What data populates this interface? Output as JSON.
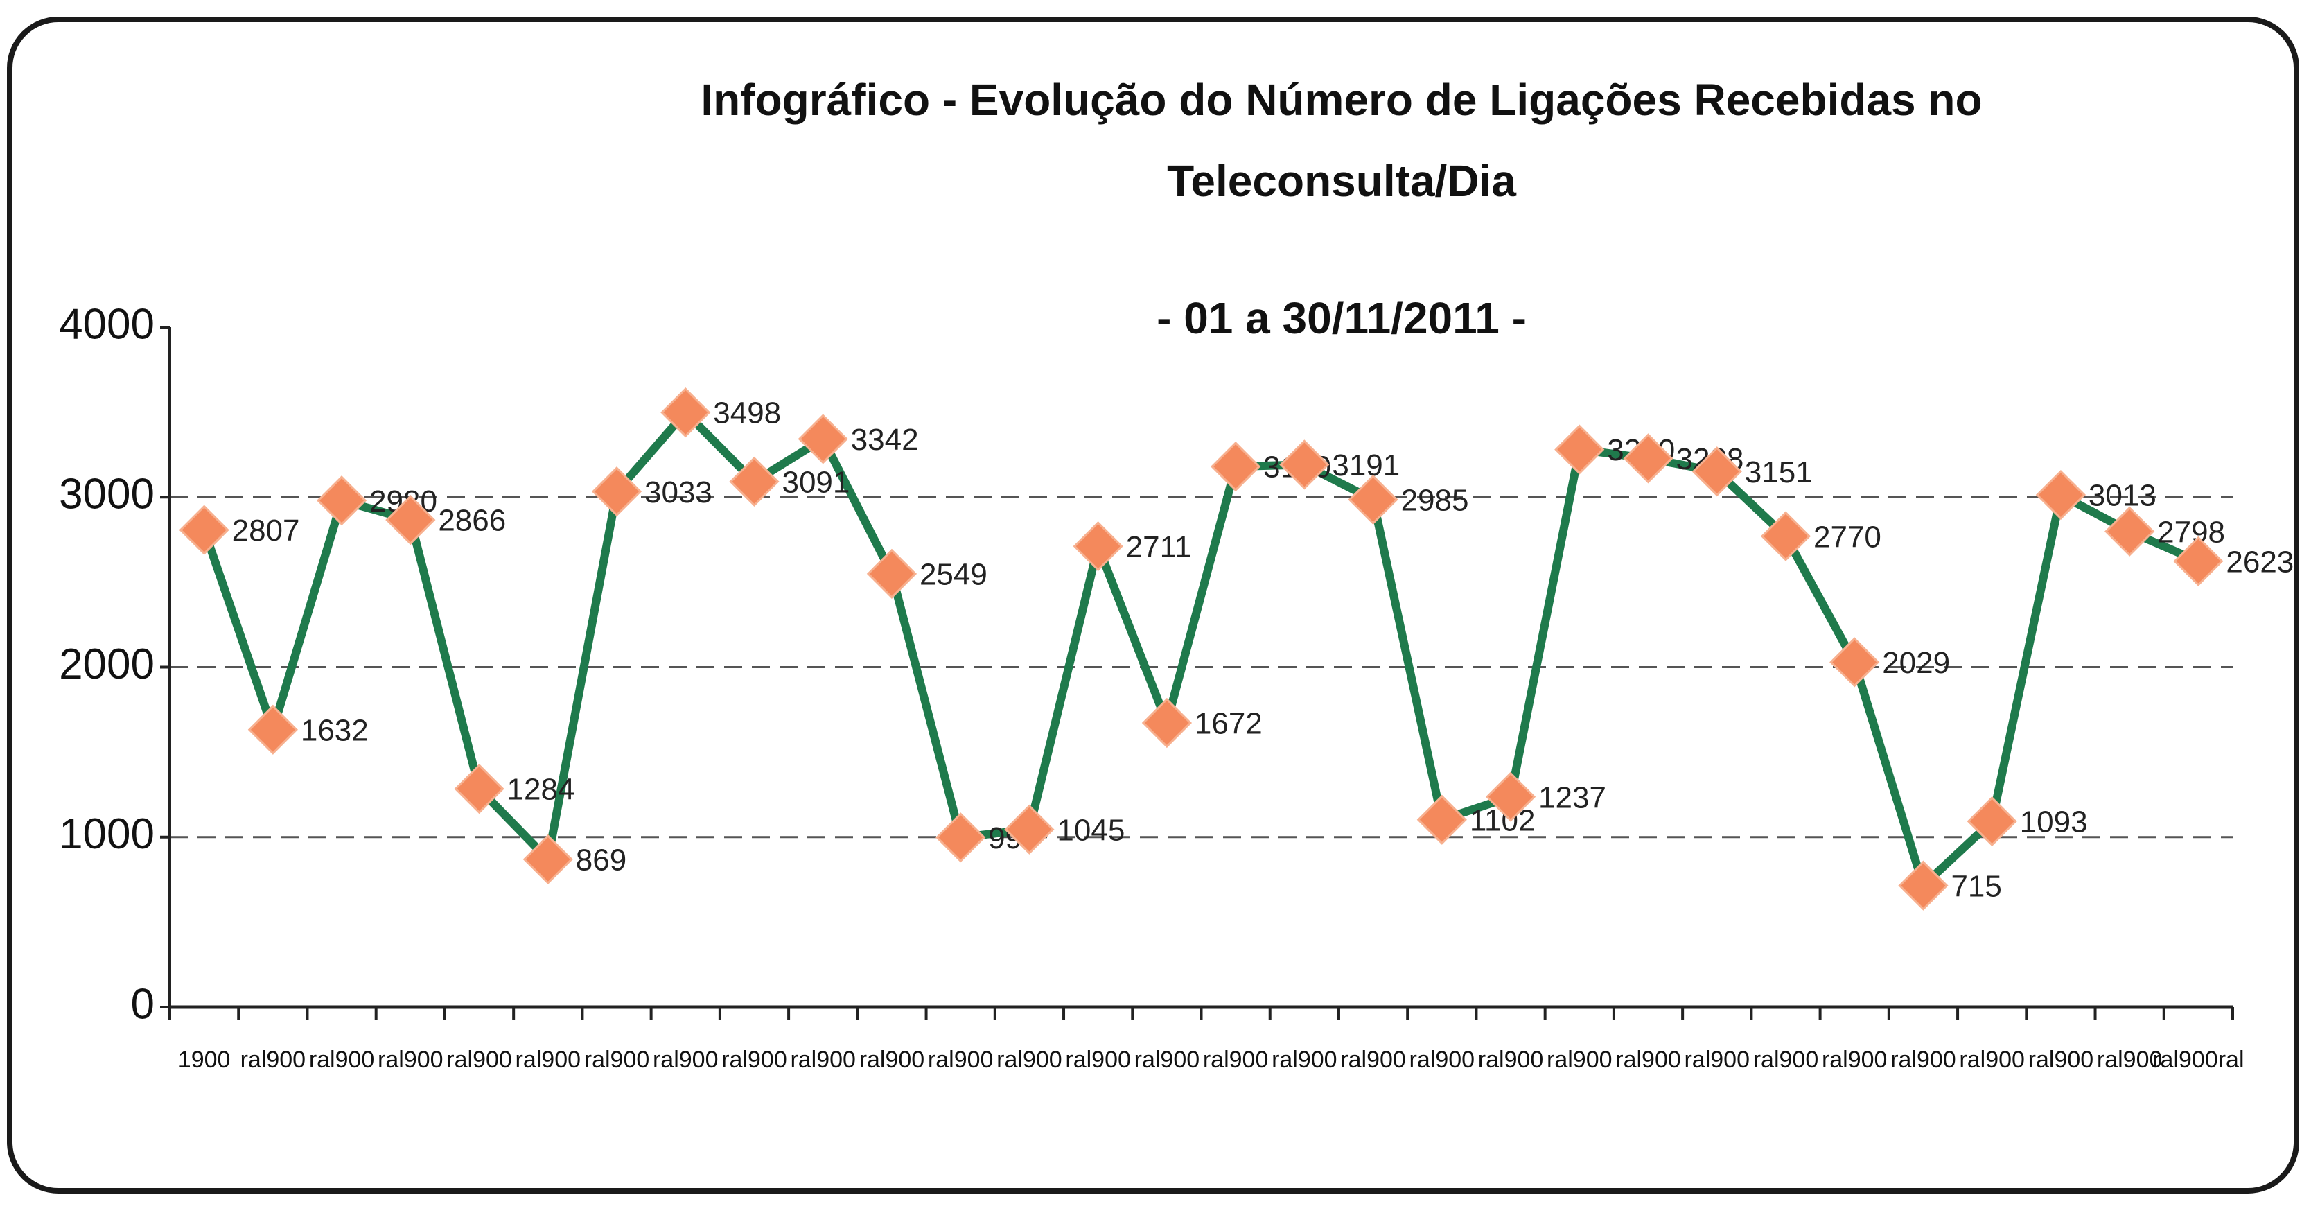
{
  "chart_data": {
    "type": "line",
    "title": [
      "Infográfico - Evolução do Número de Ligações Recebidas no",
      "Teleconsulta/Dia"
    ],
    "subtitle": "- 01 a 30/11/2011 -",
    "categories": [
      "1900",
      "ral900",
      "ral900",
      "ral900",
      "ral900",
      "ral900",
      "ral900",
      "ral900",
      "ral900",
      "ral900",
      "ral900",
      "ral900",
      "ral900",
      "ral900",
      "ral900",
      "ral900",
      "ral900",
      "ral900",
      "ral900",
      "ral900",
      "ral900",
      "ral900",
      "ral900",
      "ral900",
      "ral900",
      "ral900",
      "ral900",
      "ral900",
      "ral900",
      "ral900ral"
    ],
    "series": [
      {
        "color": "#1f7a4c",
        "marker_color": "#f4895c",
        "values": [
          2807,
          1632,
          2980,
          2866,
          1284,
          869,
          3033,
          3498,
          3091,
          3342,
          2549,
          998,
          1045,
          2711,
          1672,
          3180,
          3191,
          2985,
          1102,
          1237,
          3280,
          3228,
          3151,
          2770,
          2029,
          715,
          1093,
          3013,
          2798,
          2623
        ]
      }
    ],
    "ylim": [
      0,
      4000
    ],
    "yticks": [
      0,
      1000,
      2000,
      3000,
      4000
    ],
    "grid": true
  }
}
